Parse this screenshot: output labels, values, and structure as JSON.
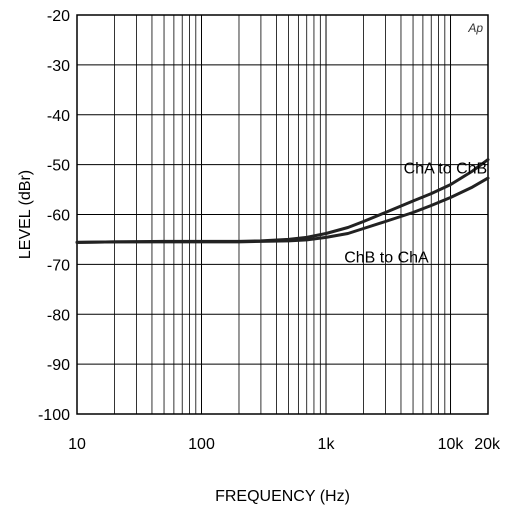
{
  "chart_data": {
    "type": "line",
    "title": "",
    "xlabel": "FREQUENCY (Hz)",
    "ylabel": "LEVEL (dBr)",
    "xscale": "log",
    "xlim": [
      10,
      20000
    ],
    "ylim": [
      -100,
      -20
    ],
    "grid": true,
    "x_ticks": [
      10,
      100,
      1000,
      10000,
      20000
    ],
    "x_tick_labels": [
      "10",
      "100",
      "1k",
      "10k",
      "20k"
    ],
    "y_ticks": [
      -20,
      -30,
      -40,
      -50,
      -60,
      -70,
      -80,
      -90,
      -100
    ],
    "y_tick_labels": [
      "-20",
      "-30",
      "-40",
      "-50",
      "-60",
      "-70",
      "-80",
      "-90",
      "-100"
    ],
    "corner_label": "Ap",
    "series": [
      {
        "name": "ChA to ChB",
        "color": "#222222",
        "x": [
          10,
          20,
          50,
          100,
          200,
          300,
          500,
          700,
          1000,
          1500,
          2000,
          3000,
          5000,
          7000,
          10000,
          15000,
          20000
        ],
        "y": [
          -65.6,
          -65.5,
          -65.4,
          -65.4,
          -65.4,
          -65.3,
          -65.0,
          -64.6,
          -63.8,
          -62.6,
          -61.4,
          -59.6,
          -57.3,
          -55.8,
          -54.0,
          -51.3,
          -49.0
        ]
      },
      {
        "name": "ChB to ChA",
        "color": "#222222",
        "x": [
          10,
          20,
          50,
          100,
          200,
          300,
          500,
          700,
          1000,
          1500,
          2000,
          3000,
          5000,
          7000,
          10000,
          15000,
          20000
        ],
        "y": [
          -65.6,
          -65.5,
          -65.5,
          -65.5,
          -65.5,
          -65.4,
          -65.3,
          -65.1,
          -64.6,
          -63.8,
          -62.8,
          -61.4,
          -59.6,
          -58.2,
          -56.6,
          -54.5,
          -52.7
        ]
      }
    ],
    "annotations": [
      {
        "text": "ChA to ChB",
        "series": 0
      },
      {
        "text": "ChB to ChA",
        "series": 1
      }
    ]
  }
}
